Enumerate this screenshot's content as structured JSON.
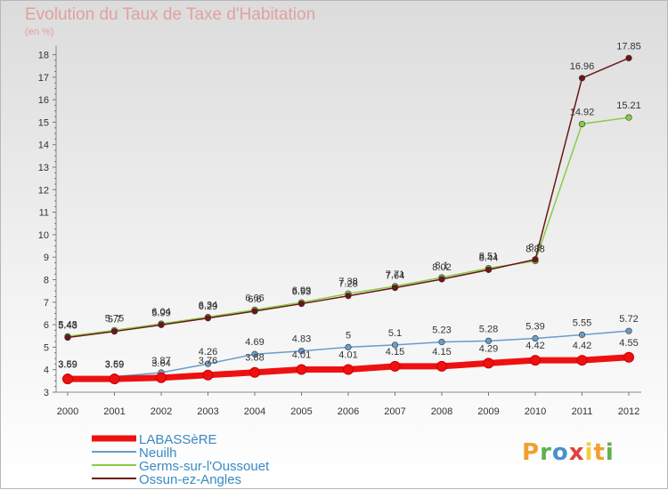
{
  "title": "Evolution du Taux de Taxe d'Habitation",
  "subtitle": "(en %)",
  "logo": {
    "text": "Proxiti",
    "colors": [
      "#f0a030",
      "#60b050",
      "#4a90d0",
      "#e04040",
      "#f0d030"
    ]
  },
  "chart_data": {
    "type": "line",
    "title": "Evolution du Taux de Taxe d'Habitation",
    "ylabel": "(en %)",
    "x": [
      "2000",
      "2001",
      "2002",
      "2003",
      "2004",
      "2005",
      "2006",
      "2007",
      "2008",
      "2009",
      "2010",
      "2011",
      "2012"
    ],
    "ylim": [
      3,
      18
    ],
    "yticks": [
      3,
      4,
      5,
      6,
      7,
      8,
      9,
      10,
      11,
      12,
      13,
      14,
      15,
      16,
      17,
      18
    ],
    "grid": false,
    "legend": "bottom-left",
    "series": [
      {
        "name": "LABASSèRE",
        "color": "#ee1111",
        "values": [
          3.59,
          3.59,
          3.64,
          3.76,
          3.88,
          4.01,
          4.01,
          4.15,
          4.15,
          4.29,
          4.42,
          4.42,
          4.55
        ],
        "labels": [
          "3.59",
          "3.59",
          "3.64",
          "3.76",
          "3.88",
          "4.01",
          "4.01",
          "4.15",
          "4.15",
          "4.29",
          "4.42",
          "4.42",
          "4.55"
        ]
      },
      {
        "name": "Neuilh",
        "color": "#6a9cc8",
        "values": [
          3.69,
          3.69,
          3.87,
          4.26,
          4.69,
          4.83,
          5,
          5.1,
          5.23,
          5.28,
          5.39,
          5.55,
          5.72
        ],
        "labels": [
          "3.69",
          "3.69",
          "3.87",
          "4.26",
          "4.69",
          "4.83",
          "5",
          "5.1",
          "5.23",
          "5.28",
          "5.39",
          "5.55",
          "5.72"
        ]
      },
      {
        "name": "Germs-sur-l'Oussouet",
        "color": "#88cc44",
        "values": [
          5.48,
          5.75,
          6.04,
          6.34,
          6.66,
          6.99,
          7.38,
          7.71,
          8.1,
          8.51,
          8.83,
          14.92,
          15.21
        ],
        "labels": [
          "5.48",
          "5.75",
          "6.04",
          "6.34",
          "6.66",
          "6.99",
          "7.38",
          "7.71",
          "8.1",
          "8.51",
          "8.83",
          "14.92",
          "15.21"
        ]
      },
      {
        "name": "Ossun-ez-Angles",
        "color": "#6e1616",
        "values": [
          5.43,
          5.7,
          5.99,
          6.29,
          6.6,
          6.93,
          7.28,
          7.64,
          8.02,
          8.44,
          8.9,
          16.96,
          17.85
        ],
        "labels": [
          "5.43",
          "5.7",
          "5.99",
          "6.29",
          "6.6",
          "6.93",
          "7.28",
          "7.64",
          "8.02",
          "8.44",
          "8.9",
          "16.96",
          "17.85"
        ]
      }
    ]
  }
}
